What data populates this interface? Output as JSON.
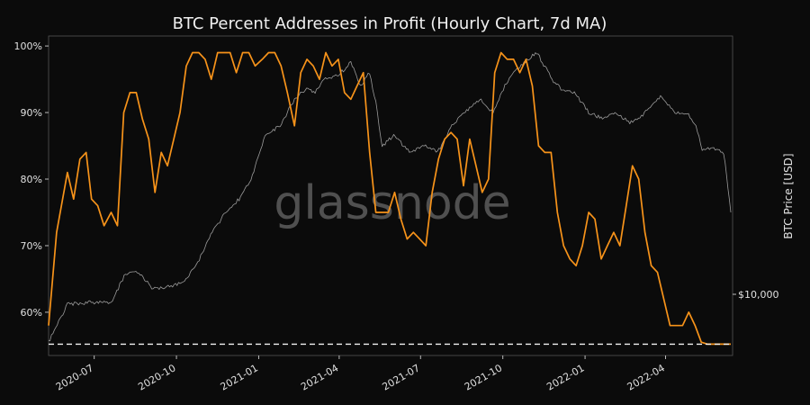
{
  "chart_data": {
    "type": "line",
    "title": "BTC Percent Addresses in Profit (Hourly Chart, 7d MA)",
    "watermark": "glassnode",
    "ylabel_right": "BTC Price [USD]",
    "right_ticks": [
      {
        "label": "$10,000",
        "value": 10000
      }
    ],
    "ylim": [
      53.5,
      101.5
    ],
    "y_ticks": [
      {
        "value": 60,
        "label": "60%"
      },
      {
        "value": 70,
        "label": "70%"
      },
      {
        "value": 80,
        "label": "80%"
      },
      {
        "value": 90,
        "label": "90%"
      },
      {
        "value": 100,
        "label": "100%"
      }
    ],
    "x_ticks": [
      "2020-07",
      "2020-10",
      "2021-01",
      "2021-04",
      "2021-07",
      "2021-10",
      "2022-01",
      "2022-04"
    ],
    "reference_line": {
      "value": 55.2,
      "style": "dashed"
    },
    "colors": {
      "percent": "#f7931a",
      "price": "#9a9a9a",
      "background": "#0b0b0b"
    },
    "series": [
      {
        "key": "percent",
        "x": [
          "2020-05-11",
          "2020-05-20",
          "2020-06-01",
          "2020-06-08",
          "2020-06-15",
          "2020-06-22",
          "2020-06-28",
          "2020-07-05",
          "2020-07-12",
          "2020-07-20",
          "2020-07-27",
          "2020-08-03",
          "2020-08-10",
          "2020-08-17",
          "2020-08-24",
          "2020-08-31",
          "2020-09-07",
          "2020-09-14",
          "2020-09-21",
          "2020-09-28",
          "2020-10-05",
          "2020-10-12",
          "2020-10-19",
          "2020-10-26",
          "2020-11-02",
          "2020-11-09",
          "2020-11-16",
          "2020-11-23",
          "2020-11-30",
          "2020-12-07",
          "2020-12-14",
          "2020-12-21",
          "2020-12-28",
          "2021-01-05",
          "2021-01-12",
          "2021-01-19",
          "2021-01-26",
          "2021-02-02",
          "2021-02-10",
          "2021-02-17",
          "2021-02-24",
          "2021-03-03",
          "2021-03-10",
          "2021-03-17",
          "2021-03-24",
          "2021-03-31",
          "2021-04-07",
          "2021-04-14",
          "2021-04-21",
          "2021-04-28",
          "2021-05-05",
          "2021-05-12",
          "2021-05-19",
          "2021-05-26",
          "2021-06-02",
          "2021-06-09",
          "2021-06-16",
          "2021-06-23",
          "2021-06-30",
          "2021-07-07",
          "2021-07-14",
          "2021-07-21",
          "2021-07-28",
          "2021-08-04",
          "2021-08-11",
          "2021-08-18",
          "2021-08-25",
          "2021-09-01",
          "2021-09-08",
          "2021-09-15",
          "2021-09-22",
          "2021-09-29",
          "2021-10-06",
          "2021-10-13",
          "2021-10-20",
          "2021-10-27",
          "2021-11-03",
          "2021-11-10",
          "2021-11-17",
          "2021-11-24",
          "2021-12-01",
          "2021-12-08",
          "2021-12-15",
          "2021-12-22",
          "2021-12-29",
          "2022-01-05",
          "2022-01-12",
          "2022-01-19",
          "2022-01-26",
          "2022-02-02",
          "2022-02-09",
          "2022-02-16",
          "2022-02-23",
          "2022-03-02",
          "2022-03-09",
          "2022-03-16",
          "2022-03-23",
          "2022-03-30",
          "2022-04-06",
          "2022-04-13",
          "2022-04-20",
          "2022-04-27",
          "2022-05-04",
          "2022-05-11",
          "2022-05-18",
          "2022-05-25",
          "2022-06-01",
          "2022-06-08",
          "2022-06-13"
        ],
        "values": [
          58,
          72,
          81,
          77,
          83,
          84,
          77,
          76,
          73,
          75,
          73,
          90,
          93,
          93,
          89,
          86,
          78,
          84,
          82,
          86,
          90,
          97,
          99,
          99,
          98,
          95,
          99,
          99,
          99,
          96,
          99,
          99,
          97,
          98,
          99,
          99,
          97,
          93,
          88,
          96,
          98,
          97,
          95,
          99,
          97,
          98,
          93,
          92,
          94,
          96,
          84,
          75,
          75,
          75,
          78,
          74,
          71,
          72,
          71,
          70,
          78,
          83,
          86,
          87,
          86,
          79,
          86,
          82,
          78,
          80,
          96,
          99,
          98,
          98,
          96,
          98,
          94,
          85,
          84,
          84,
          75,
          70,
          68,
          67,
          70,
          75,
          74,
          68,
          70,
          72,
          70,
          76,
          82,
          80,
          72,
          67,
          66,
          62,
          58,
          58,
          58,
          60,
          58,
          55.5,
          55.2,
          55.2,
          55.2,
          55.2,
          55.2
        ],
        "note_x_start": "2020-05-11"
      },
      {
        "key": "price",
        "x": [
          "2020-05-11",
          "2020-06-01",
          "2020-07-01",
          "2020-07-20",
          "2020-08-05",
          "2020-08-20",
          "2020-09-05",
          "2020-09-25",
          "2020-10-10",
          "2020-10-25",
          "2020-11-10",
          "2020-11-25",
          "2020-12-10",
          "2020-12-25",
          "2021-01-08",
          "2021-01-25",
          "2021-02-10",
          "2021-02-22",
          "2021-03-05",
          "2021-03-15",
          "2021-03-30",
          "2021-04-14",
          "2021-04-25",
          "2021-05-05",
          "2021-05-12",
          "2021-05-19",
          "2021-06-01",
          "2021-06-20",
          "2021-07-05",
          "2021-07-20",
          "2021-08-05",
          "2021-08-20",
          "2021-09-05",
          "2021-09-20",
          "2021-10-05",
          "2021-10-20",
          "2021-11-08",
          "2021-11-25",
          "2021-12-05",
          "2021-12-20",
          "2022-01-05",
          "2022-01-22",
          "2022-02-05",
          "2022-02-20",
          "2022-03-05",
          "2022-03-28",
          "2022-04-10",
          "2022-04-25",
          "2022-05-05",
          "2022-05-12",
          "2022-05-25",
          "2022-06-05",
          "2022-06-13"
        ],
        "values": [
          55.5,
          61.2,
          61.5,
          61.5,
          65.8,
          66.0,
          63.5,
          64.0,
          64.5,
          67.5,
          72.0,
          75.0,
          77.0,
          80.5,
          86.5,
          88.0,
          92.0,
          93.5,
          93.0,
          95.0,
          95.5,
          97.5,
          94.0,
          96.0,
          91.5,
          85.0,
          86.5,
          84.0,
          85.0,
          84.0,
          88.0,
          90.0,
          92.0,
          90.0,
          94.5,
          97.0,
          99.0,
          95.0,
          93.5,
          93.0,
          90.0,
          89.0,
          90.0,
          88.5,
          89.5,
          92.5,
          90.0,
          90.0,
          88.0,
          84.5,
          84.5,
          84.0,
          75.0
        ]
      }
    ]
  }
}
